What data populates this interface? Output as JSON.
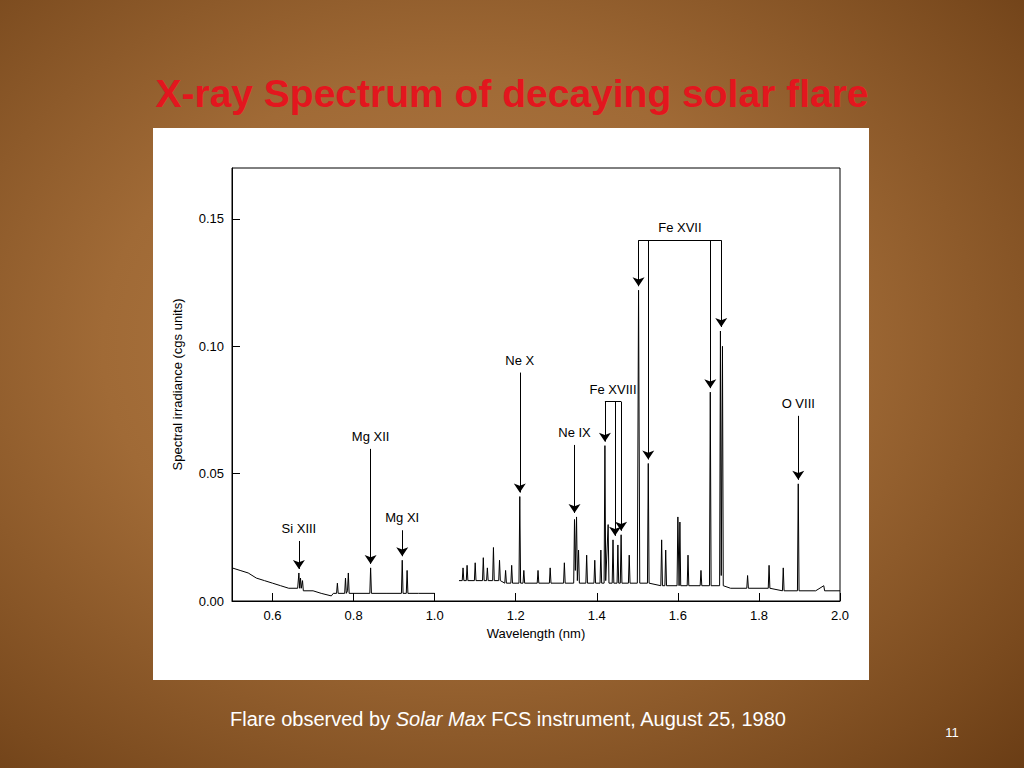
{
  "slide": {
    "caption": {
      "text_before": "Flare observed by ",
      "italic": "Solar Max",
      "text_after": " FCS instrument, August 25, 1980"
    },
    "page_number": 11
  },
  "chart_data": {
    "type": "line",
    "title": "X-ray Spectrum of decaying solar flare",
    "x_label": "Wavelength (nm)",
    "y_label": "Spectral irradiance (cgs units)",
    "color": "#000000",
    "grid": false,
    "xlim": [
      0.5,
      2.0
    ],
    "xticks": [
      0.6,
      0.8,
      {
        "value": 1.0,
        "label": "1.0"
      },
      1.2,
      1.4,
      1.6,
      1.8,
      {
        "value": 2.0,
        "label": "2.0"
      }
    ],
    "ylim": [
      0,
      0.17
    ],
    "yticks": [
      {
        "value": 0,
        "label": "0.00"
      },
      {
        "value": 0.05,
        "label": "0.05"
      },
      {
        "value": 0.1,
        "label": "0.10"
      },
      {
        "value": 0.15,
        "label": "0.15"
      }
    ],
    "x": [
      0.5,
      0.52,
      0.54,
      0.56,
      0.58,
      0.6,
      0.62,
      0.64,
      0.662,
      0.665,
      0.667,
      0.669,
      0.671,
      0.674,
      0.676,
      0.7,
      0.72,
      0.745,
      0.75,
      0.758,
      0.76,
      0.762,
      0.778,
      0.78,
      0.782,
      0.785,
      0.787,
      0.789,
      0.8,
      0.84,
      0.842,
      0.844,
      0.88,
      0.918,
      0.92,
      0.922,
      0.93,
      0.932,
      0.934,
      0.96,
      1.0,
      1.03,
      1.06,
      1.068,
      1.07,
      1.072,
      1.078,
      1.08,
      1.082,
      1.098,
      1.1,
      1.102,
      1.118,
      1.12,
      1.122,
      1.128,
      1.13,
      1.132,
      1.143,
      1.145,
      1.147,
      1.158,
      1.16,
      1.162,
      1.173,
      1.175,
      1.177,
      1.188,
      1.19,
      1.192,
      1.208,
      1.21,
      1.212,
      1.218,
      1.22,
      1.222,
      1.253,
      1.255,
      1.257,
      1.283,
      1.285,
      1.287,
      1.318,
      1.32,
      1.322,
      1.343,
      1.345,
      1.347,
      1.35,
      1.352,
      1.355,
      1.357,
      1.373,
      1.375,
      1.377,
      1.393,
      1.395,
      1.397,
      1.408,
      1.41,
      1.412,
      1.418,
      1.42,
      1.422,
      1.428,
      1.43,
      1.438,
      1.44,
      1.442,
      1.45,
      1.452,
      1.454,
      1.458,
      1.46,
      1.462,
      1.478,
      1.48,
      1.482,
      1.5,
      1.503,
      1.506,
      1.525,
      1.527,
      1.529,
      1.558,
      1.56,
      1.562,
      1.568,
      1.57,
      1.572,
      1.598,
      1.6,
      1.603,
      1.605,
      1.607,
      1.623,
      1.625,
      1.627,
      1.655,
      1.657,
      1.659,
      1.678,
      1.68,
      1.682,
      1.703,
      1.705,
      1.707,
      1.71,
      1.712,
      1.73,
      1.77,
      1.772,
      1.774,
      1.823,
      1.825,
      1.827,
      1.858,
      1.86,
      1.862,
      1.895,
      1.897,
      1.899,
      1.94,
      1.96,
      1.962,
      2.0
    ],
    "values": [
      0.013,
      0.012,
      0.011,
      0.009,
      0.008,
      0.007,
      0.006,
      0.005,
      0.005,
      0.011,
      0.005,
      0.009,
      0.005,
      0.008,
      0.004,
      0.004,
      0.003,
      0.002,
      0.003,
      0.003,
      0.007,
      0.003,
      0.003,
      0.009,
      0.003,
      0.004,
      0.011,
      0.003,
      0.003,
      0.003,
      0.013,
      0.003,
      0.003,
      0.003,
      0.016,
      0.003,
      0.003,
      0.012,
      0.003,
      0.003,
      0.003,
      null,
      0.008,
      0.008,
      0.013,
      0.008,
      0.008,
      0.014,
      0.008,
      0.008,
      0.015,
      0.008,
      0.008,
      0.017,
      0.008,
      0.008,
      0.013,
      0.008,
      0.008,
      0.021,
      0.008,
      0.008,
      0.016,
      0.008,
      0.007,
      0.012,
      0.007,
      0.007,
      0.014,
      0.007,
      0.007,
      0.041,
      0.007,
      0.007,
      0.012,
      0.007,
      0.007,
      0.012,
      0.007,
      0.007,
      0.013,
      0.007,
      0.007,
      0.015,
      0.007,
      0.007,
      0.032,
      0.012,
      0.033,
      0.008,
      0.02,
      0.007,
      0.007,
      0.018,
      0.007,
      0.007,
      0.016,
      0.007,
      0.007,
      0.02,
      0.007,
      0.007,
      0.061,
      0.008,
      0.03,
      0.007,
      0.007,
      0.024,
      0.007,
      0.007,
      0.022,
      0.007,
      0.007,
      0.026,
      0.007,
      0.007,
      0.018,
      0.007,
      0.007,
      0.122,
      0.007,
      0.007,
      0.054,
      0.007,
      0.006,
      0.024,
      0.006,
      0.006,
      0.02,
      0.006,
      0.006,
      0.033,
      0.006,
      0.031,
      0.006,
      0.006,
      0.018,
      0.006,
      0.006,
      0.012,
      0.006,
      0.006,
      0.082,
      0.006,
      0.006,
      0.106,
      0.01,
      0.1,
      0.006,
      0.005,
      0.005,
      0.01,
      0.005,
      0.005,
      0.014,
      0.005,
      0.004,
      0.013,
      0.004,
      0.004,
      0.046,
      0.004,
      0.004,
      0.006,
      0.004,
      0.004
    ],
    "annotations": [
      {
        "text": "Si XIII",
        "x": [
          0.665
        ]
      },
      {
        "text": "Mg XII",
        "x": [
          0.842
        ]
      },
      {
        "text": "Mg XI",
        "x": [
          0.92
        ]
      },
      {
        "text": "Ne X",
        "x": [
          1.21
        ]
      },
      {
        "text": "Ne IX",
        "x": [
          1.345
        ]
      },
      {
        "text": "Fe XVIII",
        "x": [
          1.42,
          1.445,
          1.46
        ]
      },
      {
        "text": "Fe XVII",
        "x": [
          1.503,
          1.527,
          1.68,
          1.707
        ]
      },
      {
        "text": "O VIII",
        "x": [
          1.897
        ]
      }
    ]
  }
}
